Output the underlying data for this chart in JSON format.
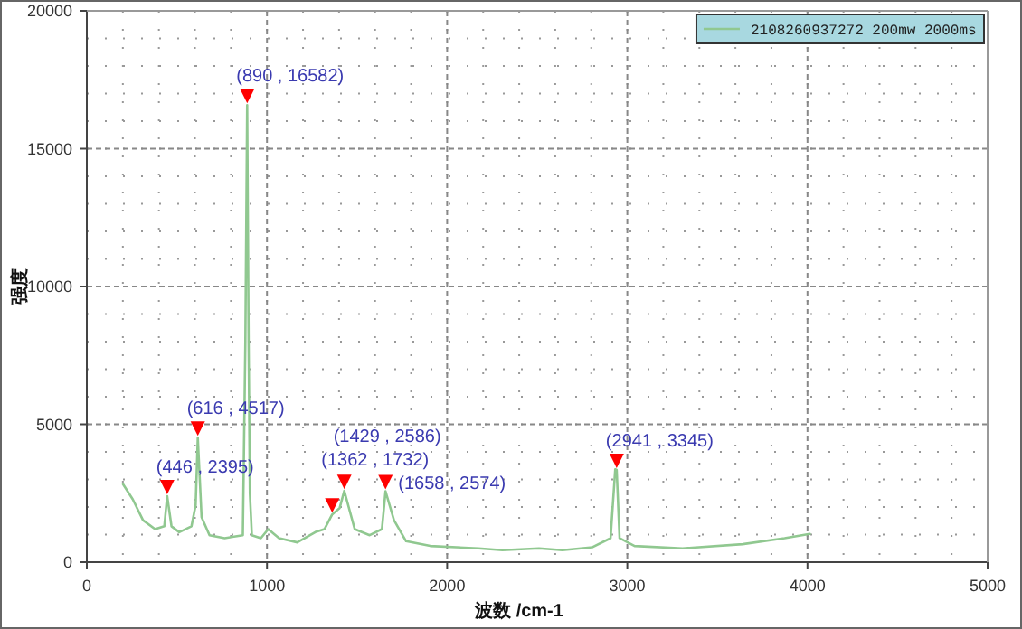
{
  "chart_data": {
    "type": "line",
    "xlabel": "波数 /cm-1",
    "ylabel": "强度",
    "xlim": [
      0,
      5000
    ],
    "xticks": [
      0,
      1000,
      2000,
      3000,
      4000,
      5000
    ],
    "ylim": [
      0,
      20000
    ],
    "yticks": [
      0,
      5000,
      10000,
      15000,
      20000
    ],
    "grid": true,
    "legend": "top right",
    "series": [
      {
        "name": "2108260937272 200mw 2000ms",
        "color": "#90c890",
        "x": [
          201,
          255,
          312,
          379,
          430,
          446,
          470,
          513,
          581,
          604,
          616,
          637,
          681,
          765,
          866,
          880,
          890,
          898,
          905,
          916,
          966,
          1007,
          1067,
          1168,
          1268,
          1319,
          1362,
          1403,
          1429,
          1487,
          1570,
          1638,
          1658,
          1705,
          1772,
          1906,
          2174,
          2307,
          2510,
          2640,
          2807,
          2907,
          2933,
          2941,
          2957,
          3040,
          3307,
          3640,
          3873,
          4013
        ],
        "values": [
          2826,
          2280,
          1520,
          1196,
          1300,
          2395,
          1300,
          1087,
          1300,
          2065,
          4517,
          1630,
          978,
          870,
          978,
          8000,
          16582,
          8000,
          2500,
          978,
          870,
          1196,
          870,
          717,
          1087,
          1196,
          1732,
          1957,
          2586,
          1196,
          978,
          1196,
          2574,
          1520,
          761,
          587,
          500,
          435,
          500,
          435,
          543,
          870,
          3370,
          3345,
          870,
          587,
          500,
          652,
          870,
          1022
        ]
      }
    ],
    "annotations": [
      {
        "text": "(446 , 2395)",
        "x": 446,
        "y": 2395
      },
      {
        "text": "(616 , 4517)",
        "x": 616,
        "y": 4517
      },
      {
        "text": "(890 , 16582)",
        "x": 890,
        "y": 16582
      },
      {
        "text": "(1362 , 1732)",
        "x": 1362,
        "y": 1732
      },
      {
        "text": "(1429 , 2586)",
        "x": 1429,
        "y": 2586
      },
      {
        "text": "(1658 , 2574)",
        "x": 1658,
        "y": 2574
      },
      {
        "text": "(2941 , 3345)",
        "x": 2941,
        "y": 3345
      }
    ]
  }
}
